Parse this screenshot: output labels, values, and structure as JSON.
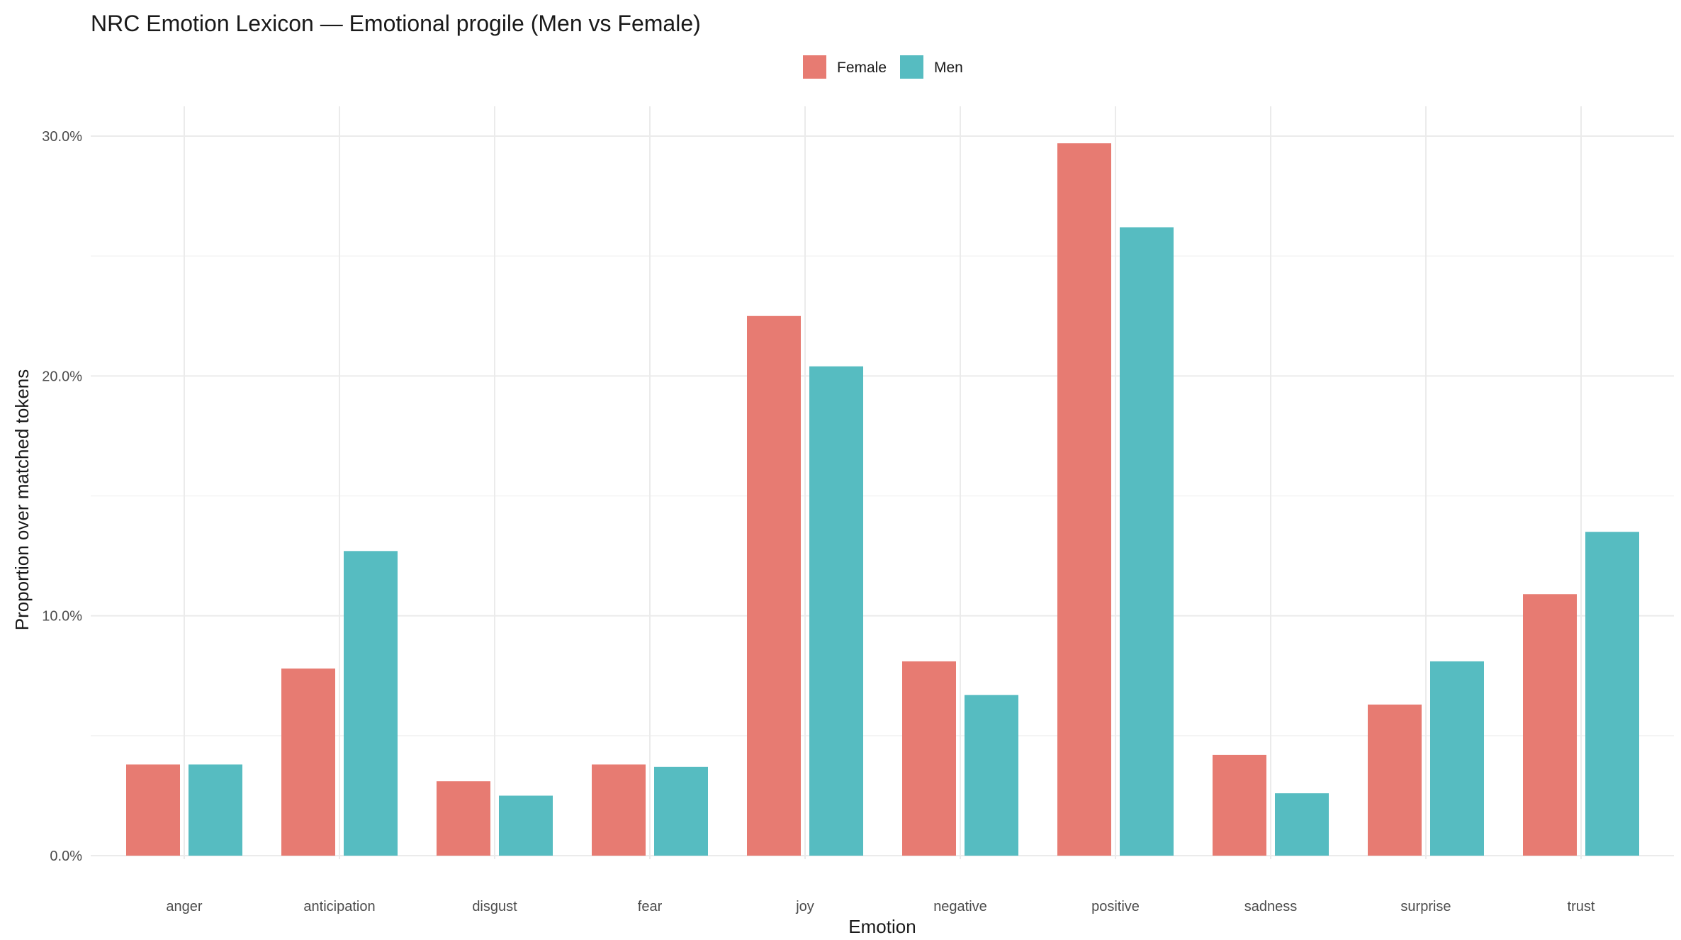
{
  "chart_data": {
    "type": "bar",
    "title": "NRC Emotion Lexicon — Emotional progile (Men vs Female)",
    "xlabel": "Emotion",
    "ylabel": "Proportion over matched tokens",
    "categories": [
      "anger",
      "anticipation",
      "disgust",
      "fear",
      "joy",
      "negative",
      "positive",
      "sadness",
      "surprise",
      "trust"
    ],
    "series": [
      {
        "name": "Female",
        "color": "#E77B72",
        "values": [
          3.8,
          7.8,
          3.1,
          3.8,
          22.5,
          8.1,
          29.7,
          4.2,
          6.3,
          10.9
        ]
      },
      {
        "name": "Men",
        "color": "#56BCC1",
        "values": [
          3.8,
          12.7,
          2.5,
          3.7,
          20.4,
          6.7,
          26.2,
          2.6,
          8.1,
          13.5
        ]
      }
    ],
    "ylim": [
      0,
      30
    ],
    "yticks": [
      0,
      10,
      20,
      30
    ],
    "ytick_labels": [
      "0.0%",
      "10.0%",
      "20.0%",
      "30.0%"
    ],
    "grid": true,
    "legend_position": "top"
  }
}
